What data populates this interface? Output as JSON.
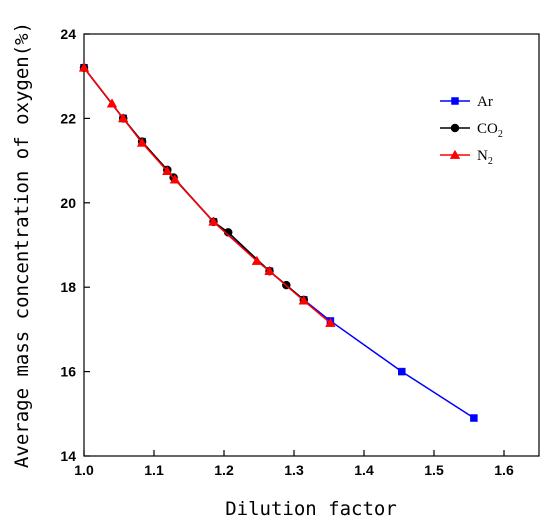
{
  "chart_data": {
    "type": "line",
    "title": "",
    "xlabel": "Dilution factor",
    "ylabel": "Average mass concentration of oxygen(%)",
    "xlim": [
      1.0,
      1.65
    ],
    "ylim": [
      14,
      24
    ],
    "xticks": [
      "1.0",
      "1.1",
      "1.2",
      "1.3",
      "1.4",
      "1.5",
      "1.6"
    ],
    "yticks": [
      "14",
      "16",
      "18",
      "20",
      "22",
      "24"
    ],
    "legend_position": "top-right",
    "grid": false,
    "series": [
      {
        "name": "Ar",
        "legend_main": "Ar",
        "legend_sub": "",
        "color": "#0000ff",
        "marker": "square",
        "x": [
          1.0,
          1.056,
          1.083,
          1.119,
          1.185,
          1.265,
          1.314,
          1.352,
          1.454,
          1.557
        ],
        "y": [
          23.2,
          22.0,
          21.45,
          20.75,
          19.55,
          18.38,
          17.7,
          17.2,
          16.0,
          14.9
        ]
      },
      {
        "name": "CO2",
        "legend_main": "CO",
        "legend_sub": "2",
        "color": "#000000",
        "marker": "circle",
        "x": [
          1.0,
          1.056,
          1.083,
          1.119,
          1.128,
          1.185,
          1.206,
          1.265,
          1.289,
          1.314
        ],
        "y": [
          23.2,
          22.0,
          21.45,
          20.78,
          20.6,
          19.55,
          19.3,
          18.38,
          18.05,
          17.7
        ]
      },
      {
        "name": "N2",
        "legend_main": "N",
        "legend_sub": "2",
        "color": "#ff0000",
        "marker": "triangle",
        "x": [
          1.0,
          1.04,
          1.056,
          1.083,
          1.119,
          1.13,
          1.185,
          1.247,
          1.265,
          1.314,
          1.352
        ],
        "y": [
          23.2,
          22.35,
          22.0,
          21.42,
          20.75,
          20.55,
          19.55,
          18.62,
          18.38,
          17.68,
          17.15
        ]
      }
    ]
  }
}
